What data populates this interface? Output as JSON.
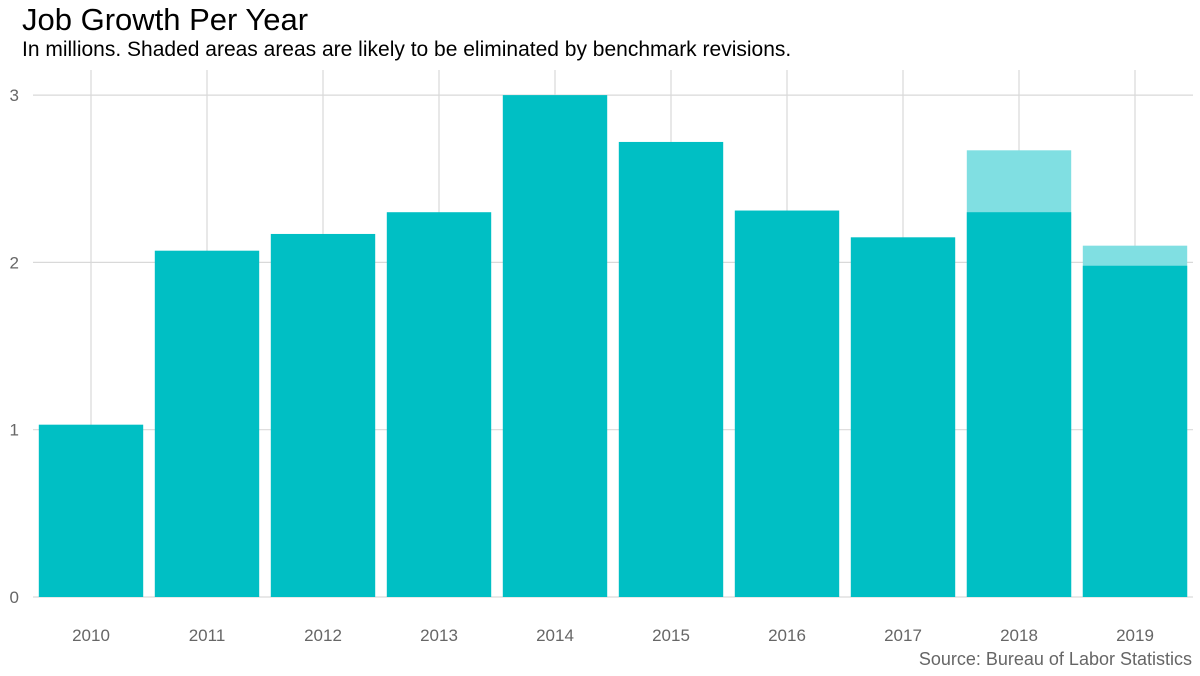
{
  "header": {
    "title": "Job Growth Per Year",
    "subtitle": "In millions. Shaded areas areas are likely to be eliminated by benchmark revisions."
  },
  "caption": "Source: Bureau of Labor Statistics",
  "colors": {
    "bar": "#00BFC4",
    "shaded": "#80DFE2",
    "grid": "#D9D9D9",
    "tick_text": "#666666"
  },
  "chart_data": {
    "type": "bar",
    "title": "Job Growth Per Year",
    "subtitle": "In millions. Shaded areas areas are likely to be eliminated by benchmark revisions.",
    "xlabel": "",
    "ylabel": "",
    "categories": [
      "2010",
      "2011",
      "2012",
      "2013",
      "2014",
      "2015",
      "2016",
      "2017",
      "2018",
      "2019"
    ],
    "values": [
      1.03,
      2.07,
      2.17,
      2.3,
      3.0,
      2.72,
      2.31,
      2.15,
      2.3,
      1.98
    ],
    "shaded_totals": [
      null,
      null,
      null,
      null,
      null,
      null,
      null,
      null,
      2.67,
      2.1
    ],
    "ylim": [
      0,
      3.15
    ],
    "yticks": [
      0,
      1,
      2,
      3
    ],
    "grid": true,
    "legend": "none"
  }
}
